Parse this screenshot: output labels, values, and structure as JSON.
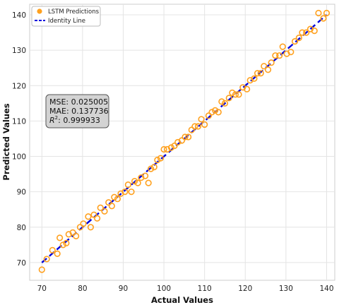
{
  "chart_data": {
    "type": "scatter",
    "xlabel": "Actual Values",
    "ylabel": "Predicted Values",
    "xlim": [
      67,
      142
    ],
    "ylim": [
      65,
      143
    ],
    "xticks": [
      70,
      80,
      90,
      100,
      110,
      120,
      130,
      140
    ],
    "yticks": [
      70,
      80,
      90,
      100,
      110,
      120,
      130,
      140
    ],
    "grid": true,
    "legend_position": "top-left",
    "colors": {
      "predictions": "#FFA11F",
      "identity": "#0000DD",
      "metrics_box": "#D3D3D3"
    },
    "series": [
      {
        "name": "LSTM Predictions",
        "type": "scatter",
        "marker": "open-circle",
        "points": [
          [
            70.0,
            68.0
          ],
          [
            71.2,
            71.0
          ],
          [
            72.6,
            73.5
          ],
          [
            73.8,
            72.5
          ],
          [
            74.4,
            77.0
          ],
          [
            75.2,
            75.0
          ],
          [
            76.0,
            75.5
          ],
          [
            76.6,
            78.0
          ],
          [
            77.6,
            78.5
          ],
          [
            78.4,
            77.5
          ],
          [
            79.4,
            80.0
          ],
          [
            80.2,
            81.0
          ],
          [
            81.4,
            83.0
          ],
          [
            82.0,
            80.0
          ],
          [
            82.8,
            83.5
          ],
          [
            83.6,
            82.5
          ],
          [
            84.4,
            85.5
          ],
          [
            85.4,
            84.5
          ],
          [
            86.4,
            87.0
          ],
          [
            87.2,
            86.0
          ],
          [
            87.8,
            88.5
          ],
          [
            88.6,
            88.0
          ],
          [
            89.4,
            89.5
          ],
          [
            90.4,
            90.0
          ],
          [
            91.2,
            92.0
          ],
          [
            92.0,
            90.0
          ],
          [
            92.8,
            93.0
          ],
          [
            93.6,
            92.5
          ],
          [
            94.4,
            94.0
          ],
          [
            95.4,
            94.5
          ],
          [
            96.2,
            92.5
          ],
          [
            96.8,
            96.5
          ],
          [
            97.6,
            97.0
          ],
          [
            98.4,
            99.0
          ],
          [
            99.2,
            99.5
          ],
          [
            100.0,
            102.0
          ],
          [
            100.8,
            102.0
          ],
          [
            101.8,
            102.5
          ],
          [
            102.6,
            103.0
          ],
          [
            103.4,
            104.0
          ],
          [
            104.4,
            104.5
          ],
          [
            105.2,
            105.5
          ],
          [
            106.0,
            105.5
          ],
          [
            106.8,
            107.5
          ],
          [
            107.6,
            108.5
          ],
          [
            108.4,
            108.5
          ],
          [
            109.2,
            110.5
          ],
          [
            110.0,
            109.0
          ],
          [
            111.0,
            111.5
          ],
          [
            111.8,
            112.5
          ],
          [
            112.6,
            113.0
          ],
          [
            113.4,
            112.5
          ],
          [
            114.2,
            115.5
          ],
          [
            115.0,
            115.0
          ],
          [
            116.0,
            116.5
          ],
          [
            116.8,
            118.0
          ],
          [
            117.6,
            117.5
          ],
          [
            118.4,
            117.5
          ],
          [
            119.4,
            119.5
          ],
          [
            120.4,
            119.0
          ],
          [
            121.2,
            121.5
          ],
          [
            122.2,
            122.0
          ],
          [
            123.0,
            123.5
          ],
          [
            123.8,
            123.5
          ],
          [
            124.6,
            125.5
          ],
          [
            125.6,
            124.5
          ],
          [
            126.4,
            126.5
          ],
          [
            127.4,
            128.5
          ],
          [
            128.4,
            128.5
          ],
          [
            129.2,
            131.0
          ],
          [
            130.2,
            129.0
          ],
          [
            131.2,
            129.5
          ],
          [
            132.2,
            132.5
          ],
          [
            133.2,
            133.5
          ],
          [
            134.0,
            135.0
          ],
          [
            135.0,
            135.0
          ],
          [
            136.0,
            136.0
          ],
          [
            137.0,
            135.5
          ],
          [
            138.0,
            140.5
          ],
          [
            139.2,
            139.0
          ],
          [
            140.0,
            140.5
          ]
        ]
      },
      {
        "name": "Identity Line",
        "type": "line",
        "style": "dashed",
        "x": [
          70,
          140
        ],
        "y": [
          70,
          140
        ]
      }
    ],
    "metrics": {
      "mse": "MSE: 0.025005",
      "mae": "MAE: 0.137736",
      "r2_symbol": "R",
      "r2_exponent": "2",
      "r2_value": ": 0.999933"
    }
  }
}
